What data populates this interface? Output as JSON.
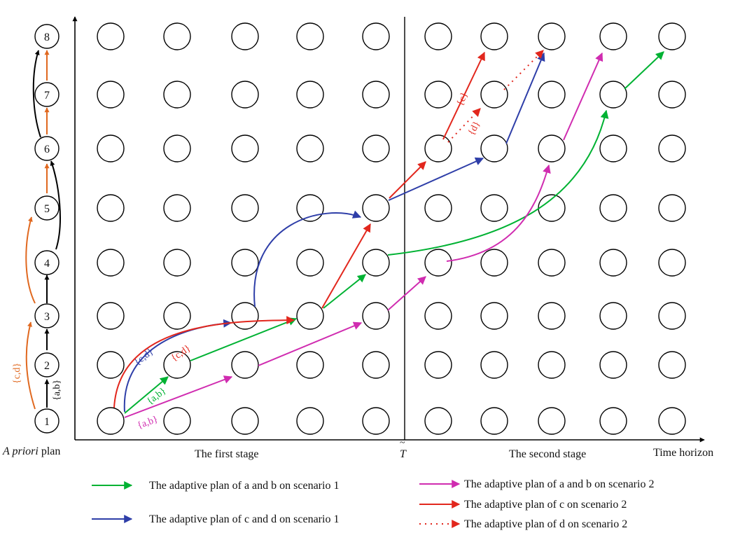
{
  "colors": {
    "green": "#00b233",
    "blue": "#2e3ea8",
    "magenta": "#d02cb0",
    "red": "#e2271d",
    "orange": "#e0681f",
    "black": "#000000"
  },
  "priori": {
    "numbers": [
      "1",
      "2",
      "3",
      "4",
      "5",
      "6",
      "7",
      "8"
    ],
    "label_italic": "A priori",
    "label_plain": " plan",
    "tag_ab": "{a,b}",
    "tag_cd": "{c,d}"
  },
  "axis": {
    "first_stage": "The first stage",
    "t_tilde": "T",
    "second_stage": "The second stage",
    "time_horizon": "Time horizon"
  },
  "tags": {
    "blue_cd": "{c,d}",
    "red_cd": "{c,d}",
    "green_ab": "{a,b}",
    "magenta_ab": "{a,b}",
    "red_c": "{c}",
    "red_d": "{d}"
  },
  "legend": {
    "green": "The adaptive plan of a and b on scenario 1",
    "blue": "The adaptive plan of c and d on scenario 1",
    "magenta": "The adaptive plan of a and b on scenario 2",
    "red": "The adaptive plan of c on scenario 2",
    "red_dotted": "The adaptive plan of d on scenario 2"
  }
}
